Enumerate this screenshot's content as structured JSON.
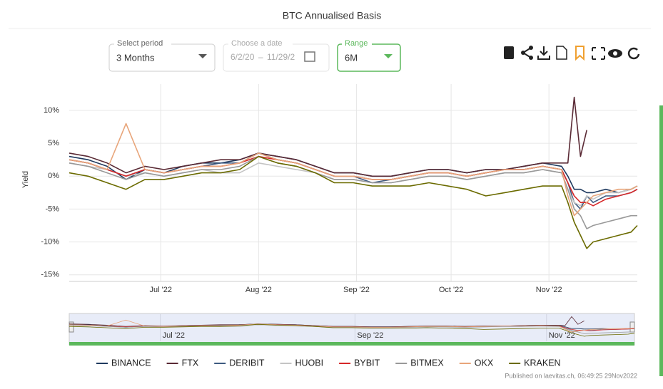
{
  "ui": {
    "period_label": "Select period",
    "period_value": "3 Months",
    "date_label": "Choose a date",
    "date_from": "6/2/20",
    "date_sep": "–",
    "date_to": "11/29/2",
    "range_label": "Range",
    "range_value": "6M",
    "credit": "Published on laevitas.ch, 06:49:25 29Nov2022"
  },
  "chart_data": {
    "type": "line",
    "title": "BTC Annualised Basis",
    "y_label": "Yield",
    "x": [
      0,
      6,
      12,
      18,
      24,
      30,
      36,
      42,
      48,
      54,
      60,
      66,
      72,
      78,
      84,
      90,
      96,
      102,
      108,
      114,
      120,
      126,
      132,
      138,
      144,
      150,
      156,
      158,
      160,
      162,
      164,
      166,
      170,
      174,
      178,
      180
    ],
    "xlim": [
      0,
      180
    ],
    "xticks": [
      {
        "value": 29,
        "label": "Jul '22"
      },
      {
        "value": 60,
        "label": "Aug '22"
      },
      {
        "value": 91,
        "label": "Sep '22"
      },
      {
        "value": 121,
        "label": "Oct '22"
      },
      {
        "value": 152,
        "label": "Nov '22"
      }
    ],
    "navigator_xticks": [
      {
        "value": 29,
        "label": "Jul '22"
      },
      {
        "value": 91,
        "label": "Sep '22"
      },
      {
        "value": 152,
        "label": "Nov '22"
      }
    ],
    "ylim": [
      -16,
      14
    ],
    "yticks": [
      {
        "value": -15,
        "label": "-15%"
      },
      {
        "value": -10,
        "label": "-10%"
      },
      {
        "value": -5,
        "label": "-5%"
      },
      {
        "value": 0,
        "label": "0%"
      },
      {
        "value": 5,
        "label": "5%"
      },
      {
        "value": 10,
        "label": "10%"
      }
    ],
    "grid": true,
    "series": [
      {
        "name": "BINANCE",
        "color": "#1f3a5f",
        "values": [
          3,
          2.5,
          1.5,
          -0.5,
          1,
          0.5,
          1.5,
          2,
          2,
          2.5,
          3.5,
          3,
          2.5,
          1.5,
          0.5,
          0.5,
          0,
          0,
          0.5,
          1,
          1,
          0.5,
          1,
          1,
          1.5,
          2,
          1.5,
          0,
          -2,
          -2,
          -2.5,
          -2.5,
          -2,
          -2.5,
          -2,
          -1.5
        ]
      },
      {
        "name": "FTX",
        "color": "#5a2a35",
        "values": [
          3.5,
          3,
          2,
          0.5,
          1.5,
          1,
          1.5,
          2,
          2.5,
          2.5,
          3.5,
          3,
          2.5,
          1.5,
          0.5,
          0.5,
          0,
          0,
          0.5,
          1,
          1,
          0.5,
          1,
          1,
          1.5,
          2,
          2,
          2,
          12,
          3,
          7,
          null,
          null,
          null,
          null,
          null
        ]
      },
      {
        "name": "DERIBIT",
        "color": "#3d5a80",
        "values": [
          2.5,
          2,
          1,
          0,
          1,
          0.5,
          1,
          1.5,
          2,
          2,
          3.5,
          2.5,
          2,
          1,
          0,
          0,
          -1,
          -0.5,
          0,
          0.5,
          0.5,
          0,
          0.5,
          1,
          1,
          1.5,
          1,
          -1,
          -4,
          -5,
          -3,
          -4,
          -3,
          -3,
          -2.5,
          -2
        ]
      },
      {
        "name": "HUOBI",
        "color": "#c4c4c4",
        "values": [
          2,
          1.5,
          1,
          0,
          0.5,
          0,
          0.5,
          1,
          0.5,
          0.5,
          2,
          1.5,
          1,
          0.5,
          -0.5,
          -0.5,
          -1,
          -1,
          -0.5,
          0,
          0,
          -0.5,
          0,
          0.5,
          0.5,
          1,
          0.5,
          -2,
          -4,
          -4.5,
          -3,
          -3.5,
          -2.5,
          -2.5,
          -2,
          -1.5
        ]
      },
      {
        "name": "BYBIT",
        "color": "#d62728",
        "values": [
          2.5,
          2,
          1,
          0,
          1,
          0.5,
          1,
          1.5,
          1.5,
          2,
          3,
          2.5,
          2,
          1,
          0,
          0,
          -0.5,
          -0.5,
          0,
          0.5,
          0.5,
          0,
          0.5,
          1,
          1,
          1.5,
          1,
          -1,
          -3,
          -4,
          -4,
          -4.5,
          -3.5,
          -3,
          -2.5,
          -2
        ]
      },
      {
        "name": "BITMEX",
        "color": "#999999",
        "values": [
          2,
          1.5,
          0.5,
          -0.5,
          0.5,
          0,
          0.5,
          1,
          1,
          1.5,
          3,
          2,
          1.5,
          0.5,
          -0.5,
          -0.5,
          -1,
          -1,
          -0.5,
          0,
          0,
          -0.5,
          0,
          0.5,
          0.5,
          1,
          0.5,
          -2,
          -5,
          -6,
          -8,
          -7.5,
          -7,
          -6.5,
          -6,
          -6
        ]
      },
      {
        "name": "OKX",
        "color": "#e8a57a",
        "values": [
          2.5,
          2,
          1,
          8,
          1,
          0.5,
          1,
          1.5,
          1.5,
          2,
          3.5,
          2.5,
          2,
          1,
          0,
          0,
          -0.5,
          -0.5,
          0,
          0.5,
          0.5,
          0,
          0.5,
          1,
          1,
          1.5,
          1,
          -3,
          -6,
          -5,
          -4,
          -3,
          -2.5,
          -2,
          -2,
          -1.5
        ]
      },
      {
        "name": "KRAKEN",
        "color": "#6b6b00",
        "values": [
          0.5,
          0,
          -1,
          -2,
          -0.5,
          -0.5,
          0,
          0.5,
          0.5,
          1,
          3,
          2,
          1.5,
          0.5,
          -1,
          -1,
          -1.5,
          -1.5,
          -1.5,
          -1,
          -1.5,
          -2,
          -3,
          -2.5,
          -2,
          -1.5,
          -1.5,
          -4,
          -7,
          -9,
          -11,
          -10,
          -9.5,
          -9,
          -8.5,
          -7.5
        ]
      }
    ]
  }
}
